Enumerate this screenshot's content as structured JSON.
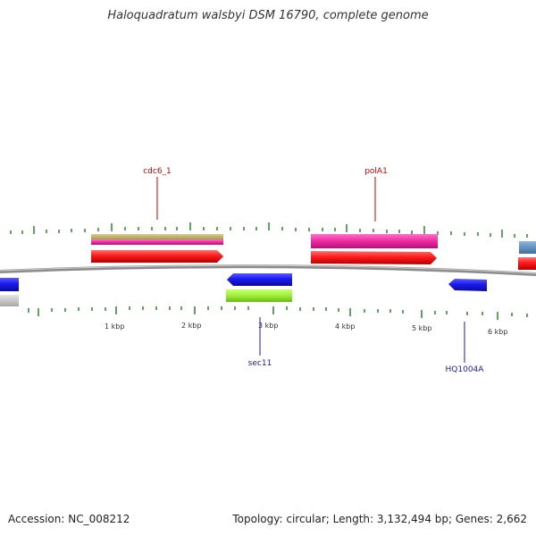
{
  "title": "Haloquadratum walsbyi DSM 16790, complete genome",
  "footer": {
    "accession": "Accession: NC_008212",
    "summary": "Topology: circular; Length: 3,132,494 bp; Genes: 2,662"
  },
  "colors": {
    "backbone": "#8c8c8c",
    "tick": "#1f7a1f",
    "label_red": "#cc0000",
    "label_blue": "#1a1aaa"
  },
  "axis": {
    "unit": "kbp",
    "labels": [
      "1 kbp",
      "2 kbp",
      "3 kbp",
      "4 kbp",
      "5 kbp",
      "6 kbp"
    ]
  },
  "genes": [
    {
      "name": "cdc6_1",
      "strand": "+",
      "color": "#e82020"
    },
    {
      "name": "polA1",
      "strand": "+",
      "color": "#e82020"
    },
    {
      "name": "sec11",
      "strand": "-",
      "color": "#1515d6"
    },
    {
      "name": "HQ1004A",
      "strand": "-",
      "color": "#1515d6"
    }
  ],
  "feature_labels": [
    {
      "text": "cdc6_1",
      "color": "#cc0000"
    },
    {
      "text": "polA1",
      "color": "#cc0000"
    },
    {
      "text": "sec11",
      "color": "#1a1aaa"
    },
    {
      "text": "HQ1004A",
      "color": "#1a1aaa"
    }
  ]
}
